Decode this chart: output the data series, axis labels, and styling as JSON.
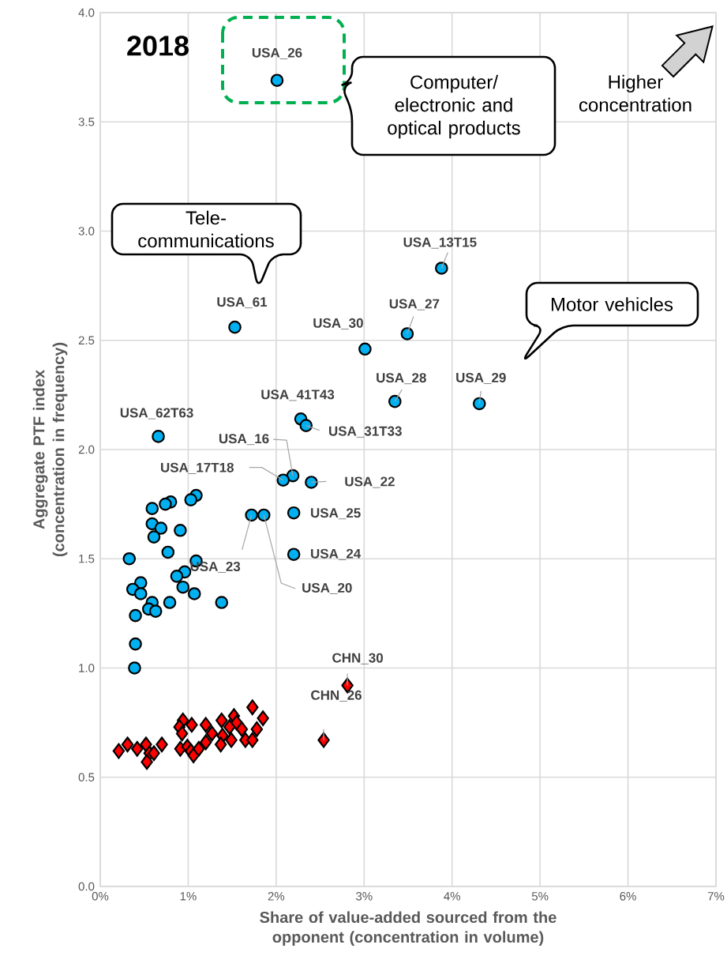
{
  "chart_data": {
    "type": "scatter",
    "title": "2018",
    "xlabel": "Share of value-added sourced from the opponent (concentration in volume)",
    "ylabel": "Aggregate PTF index (concentration in frequency)",
    "xlim": [
      0,
      7
    ],
    "ylim": [
      0,
      4
    ],
    "xticks": [
      {
        "value": 0,
        "label": "0%"
      },
      {
        "value": 1,
        "label": "1%"
      },
      {
        "value": 2,
        "label": "2%"
      },
      {
        "value": 3,
        "label": "3%"
      },
      {
        "value": 4,
        "label": "4%"
      },
      {
        "value": 5,
        "label": "5%"
      },
      {
        "value": 6,
        "label": "6%"
      },
      {
        "value": 7,
        "label": "7%"
      }
    ],
    "yticks": [
      {
        "value": 0,
        "label": "0.0"
      },
      0.5,
      {
        "value": 1,
        "label": "1.0"
      },
      1.5,
      {
        "value": 2,
        "label": "2.0"
      },
      2.5,
      {
        "value": 3,
        "label": "3.0"
      },
      3.5,
      {
        "value": 4,
        "label": "4.0"
      }
    ],
    "grid": true,
    "series": [
      {
        "color": "#00b0f0",
        "marker": "circle",
        "x": [
          2.01,
          3.88,
          3.49,
          3.01,
          1.53,
          3.35,
          4.31,
          2.28,
          2.34,
          0.66,
          2.19,
          2.08,
          2.4,
          2.2,
          2.2,
          1.72,
          1.86,
          1.38,
          1.09,
          1.03,
          0.8,
          0.74,
          0.59,
          0.59,
          0.69,
          0.61,
          0.91,
          0.77,
          0.33,
          1.09,
          0.96,
          0.87,
          0.94,
          1.07,
          0.46,
          0.37,
          0.46,
          0.59,
          0.79,
          0.55,
          0.63,
          0.4,
          0.4,
          0.39
        ],
        "values": [
          3.69,
          2.83,
          2.53,
          2.46,
          2.56,
          2.22,
          2.21,
          2.14,
          2.11,
          2.06,
          1.88,
          1.86,
          1.85,
          1.71,
          1.52,
          1.7,
          1.7,
          1.3,
          1.79,
          1.77,
          1.76,
          1.75,
          1.73,
          1.66,
          1.64,
          1.6,
          1.63,
          1.53,
          1.5,
          1.49,
          1.44,
          1.42,
          1.37,
          1.34,
          1.39,
          1.36,
          1.34,
          1.3,
          1.3,
          1.27,
          1.26,
          1.24,
          1.11,
          1.0
        ]
      },
      {
        "color": "#ff0000",
        "marker": "diamond",
        "x": [
          2.81,
          2.54,
          0.21,
          0.31,
          0.42,
          0.52,
          0.56,
          0.61,
          0.53,
          0.7,
          0.94,
          0.9,
          0.93,
          1.04,
          0.91,
          0.99,
          1.03,
          1.06,
          1.12,
          1.2,
          1.2,
          1.27,
          1.38,
          1.39,
          1.37,
          1.47,
          1.49,
          1.52,
          1.55,
          1.61,
          1.65,
          1.73,
          1.73,
          1.78,
          1.85
        ],
        "values": [
          0.92,
          0.67,
          0.62,
          0.65,
          0.63,
          0.65,
          0.61,
          0.61,
          0.57,
          0.65,
          0.76,
          0.73,
          0.7,
          0.74,
          0.63,
          0.64,
          0.62,
          0.6,
          0.63,
          0.74,
          0.66,
          0.7,
          0.76,
          0.69,
          0.65,
          0.73,
          0.67,
          0.78,
          0.75,
          0.72,
          0.67,
          0.67,
          0.82,
          0.72,
          0.77
        ]
      }
    ],
    "annotations": [
      {
        "text": "USA_26",
        "x": 2.01,
        "y": 3.69
      },
      {
        "text": "USA_13T15",
        "x": 3.88,
        "y": 2.83
      },
      {
        "text": "USA_27",
        "x": 3.49,
        "y": 2.53
      },
      {
        "text": "USA_30",
        "x": 3.01,
        "y": 2.46
      },
      {
        "text": "USA_61",
        "x": 1.53,
        "y": 2.56
      },
      {
        "text": "USA_28",
        "x": 3.35,
        "y": 2.22
      },
      {
        "text": "USA_29",
        "x": 4.31,
        "y": 2.21
      },
      {
        "text": "USA_41T43",
        "x": 2.28,
        "y": 2.14
      },
      {
        "text": "USA_31T33",
        "x": 2.34,
        "y": 2.11
      },
      {
        "text": "USA_62T63",
        "x": 0.66,
        "y": 2.06
      },
      {
        "text": "USA_16",
        "x": 2.19,
        "y": 1.88
      },
      {
        "text": "USA_17T18",
        "x": 2.08,
        "y": 1.86
      },
      {
        "text": "USA_22",
        "x": 2.4,
        "y": 1.85
      },
      {
        "text": "USA_25",
        "x": 2.2,
        "y": 1.71
      },
      {
        "text": "USA_24",
        "x": 2.2,
        "y": 1.52
      },
      {
        "text": "USA_23",
        "x": 1.72,
        "y": 1.7
      },
      {
        "text": "USA_20",
        "x": 1.86,
        "y": 1.7
      },
      {
        "text": "CHN_30",
        "x": 2.81,
        "y": 0.92
      },
      {
        "text": "CHN_26",
        "x": 2.54,
        "y": 0.67
      },
      "Computer/ electronic and optical products",
      "Tele- communications",
      "Motor vehicles",
      "Higher concentration"
    ]
  }
}
